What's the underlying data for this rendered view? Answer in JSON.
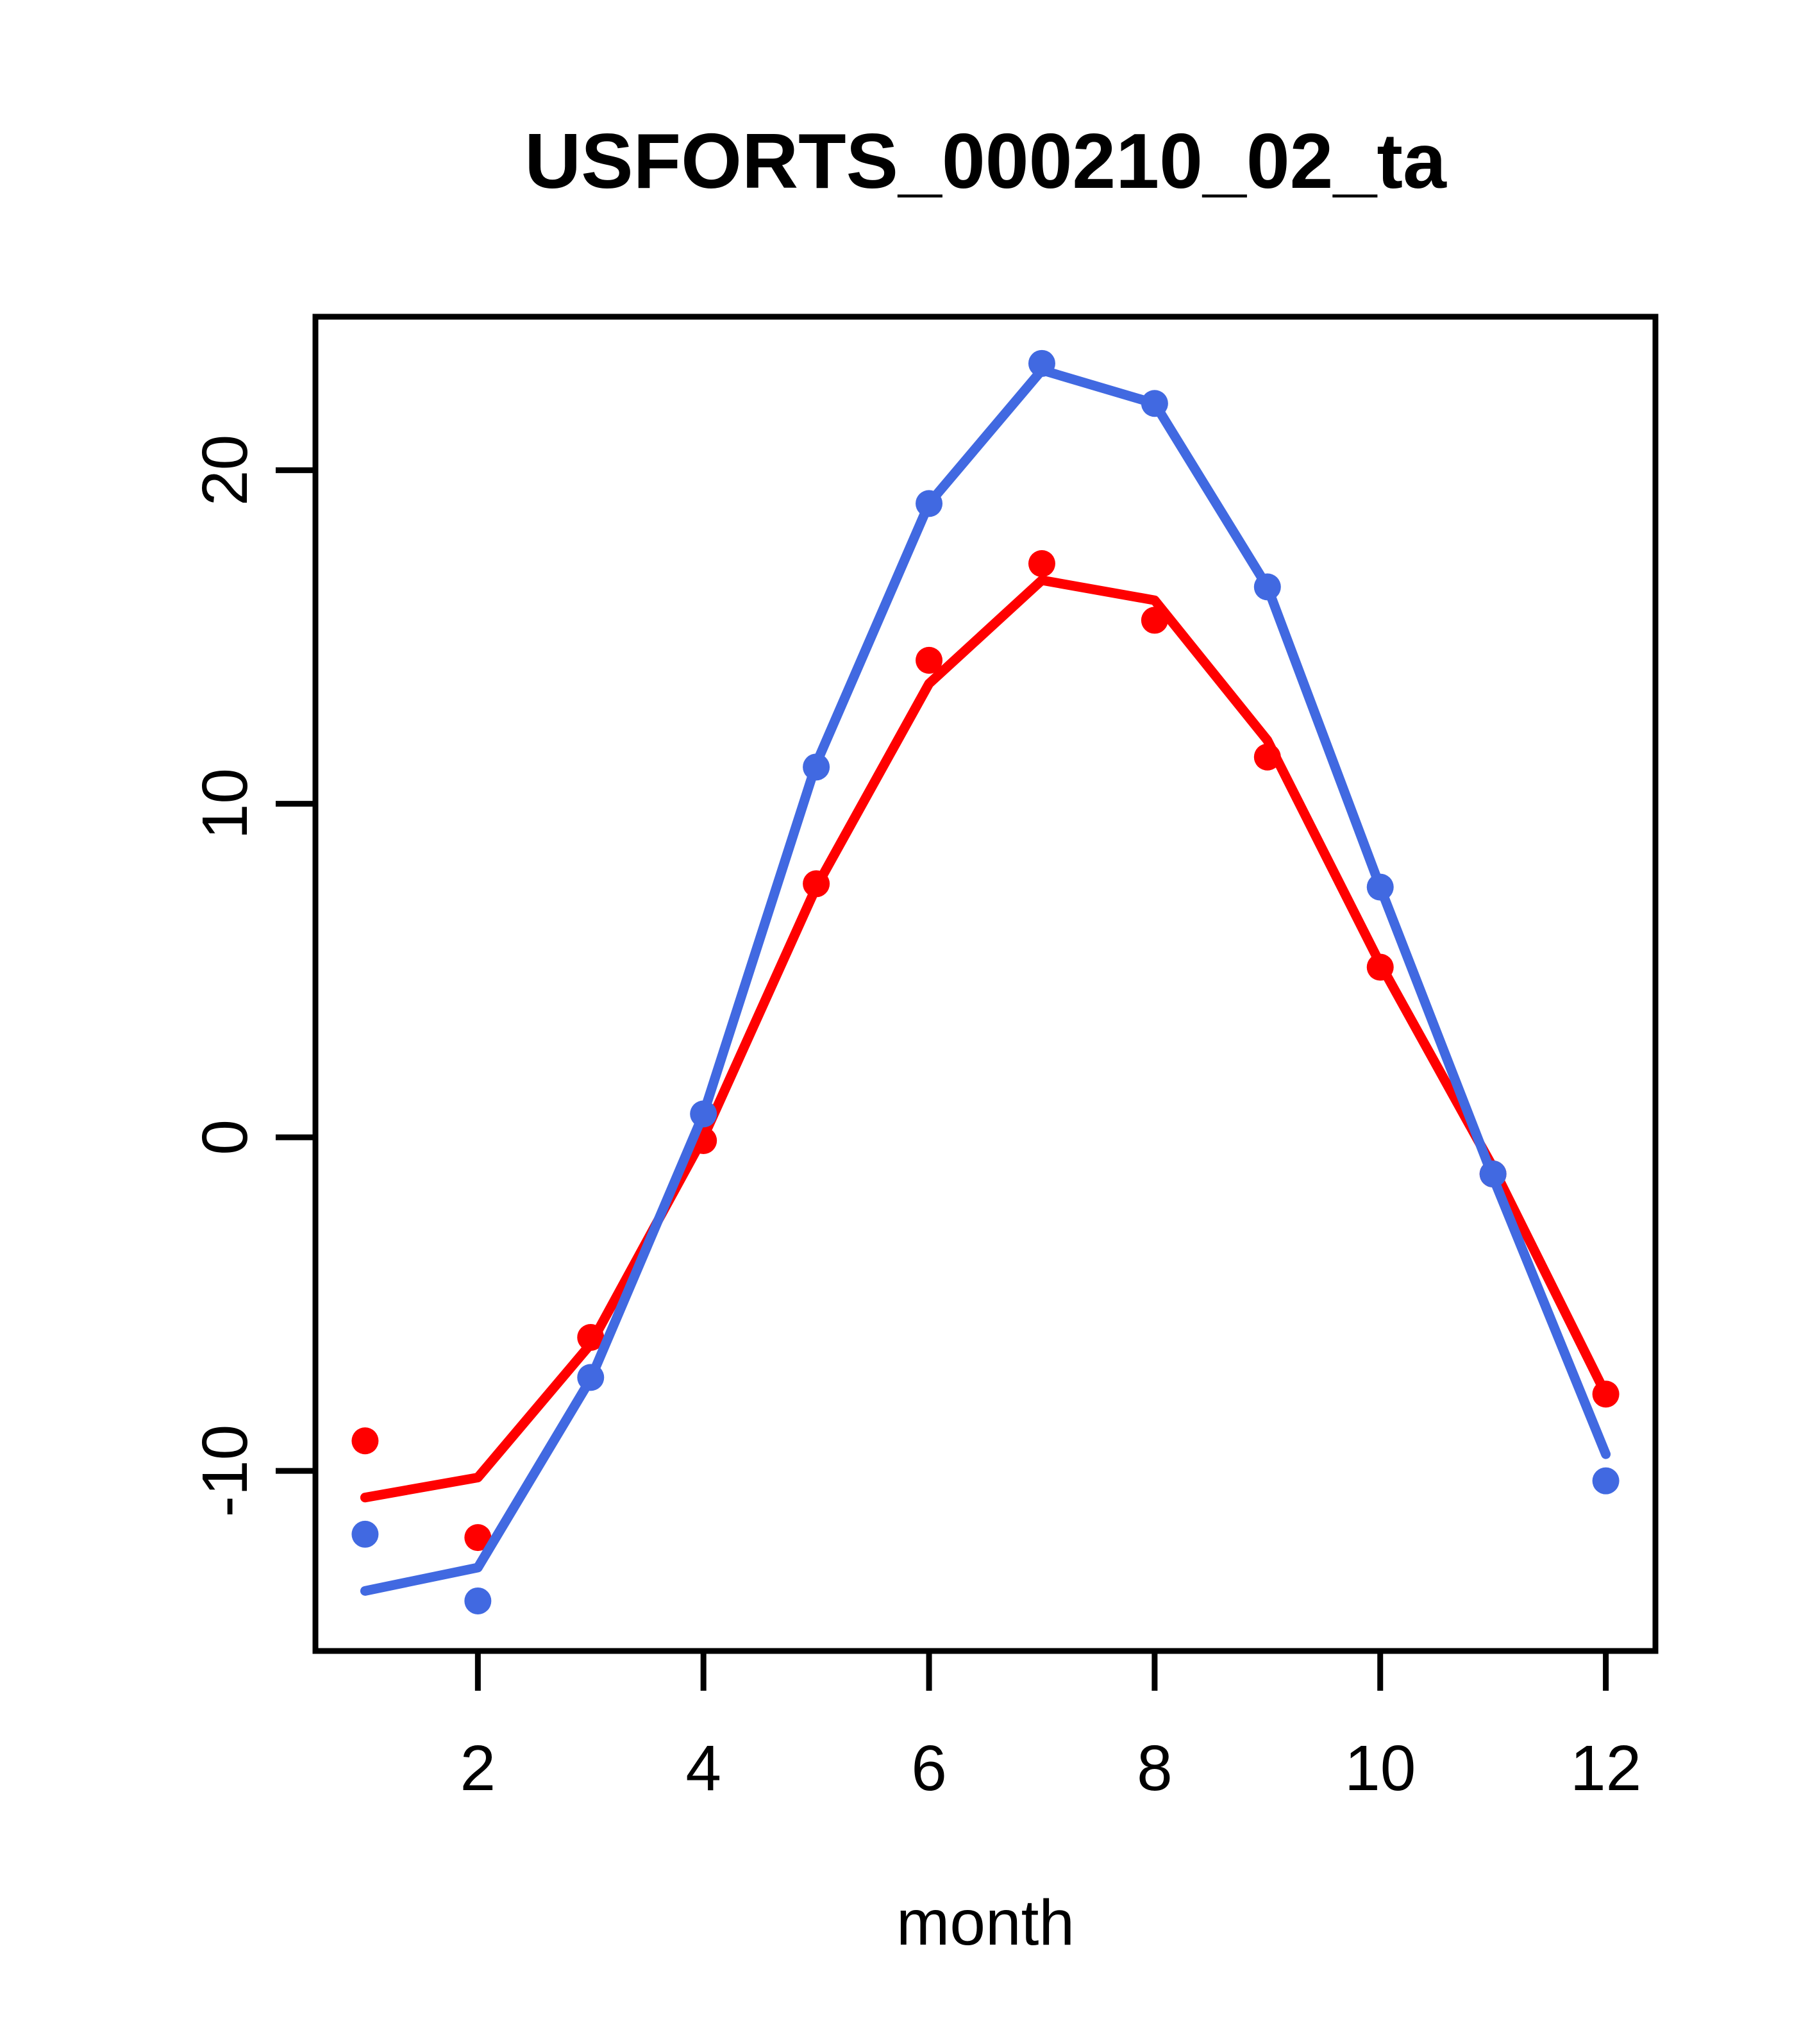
{
  "chart_data": {
    "type": "scatter",
    "title": "USFORTS_000210_02_ta",
    "xlabel": "month",
    "ylabel": "",
    "x": [
      1,
      2,
      3,
      4,
      5,
      6,
      7,
      8,
      9,
      10,
      11,
      12
    ],
    "x_ticks": [
      2,
      4,
      6,
      8,
      10,
      12
    ],
    "y_ticks": [
      -10,
      0,
      10,
      20
    ],
    "xlim": [
      0.56,
      12.44
    ],
    "ylim": [
      -15.4,
      24.6
    ],
    "grid": false,
    "legend": null,
    "frame": true,
    "series": [
      {
        "name": "red-fitted-line",
        "kind": "line",
        "color": "#ff0000",
        "values": [
          -10.8,
          -10.2,
          -6.2,
          0.0,
          7.5,
          13.6,
          16.7,
          16.1,
          11.9,
          5.2,
          -0.9,
          -7.7
        ]
      },
      {
        "name": "red-points",
        "kind": "points",
        "color": "#ff0000",
        "values": [
          -9.1,
          -12.0,
          -6.0,
          -0.1,
          7.6,
          14.3,
          17.2,
          15.5,
          11.4,
          5.1,
          -1.1,
          -7.7
        ]
      },
      {
        "name": "blue-fitted-line",
        "kind": "line",
        "color": "#4169e1",
        "values": [
          -13.6,
          -12.9,
          -7.25,
          0.7,
          11.2,
          19.0,
          23.0,
          22.0,
          16.5,
          7.5,
          -1.2,
          -9.5
        ]
      },
      {
        "name": "blue-points",
        "kind": "points",
        "color": "#4169e1",
        "values": [
          -11.9,
          -13.9,
          -7.2,
          0.7,
          11.1,
          19.0,
          23.2,
          22.0,
          16.5,
          7.5,
          -1.1,
          -10.3
        ]
      }
    ]
  },
  "colors": {
    "background": "#ffffff",
    "axis": "#000000",
    "text": "#000000",
    "series_red": "#ff0000",
    "series_blue": "#4169e1"
  }
}
